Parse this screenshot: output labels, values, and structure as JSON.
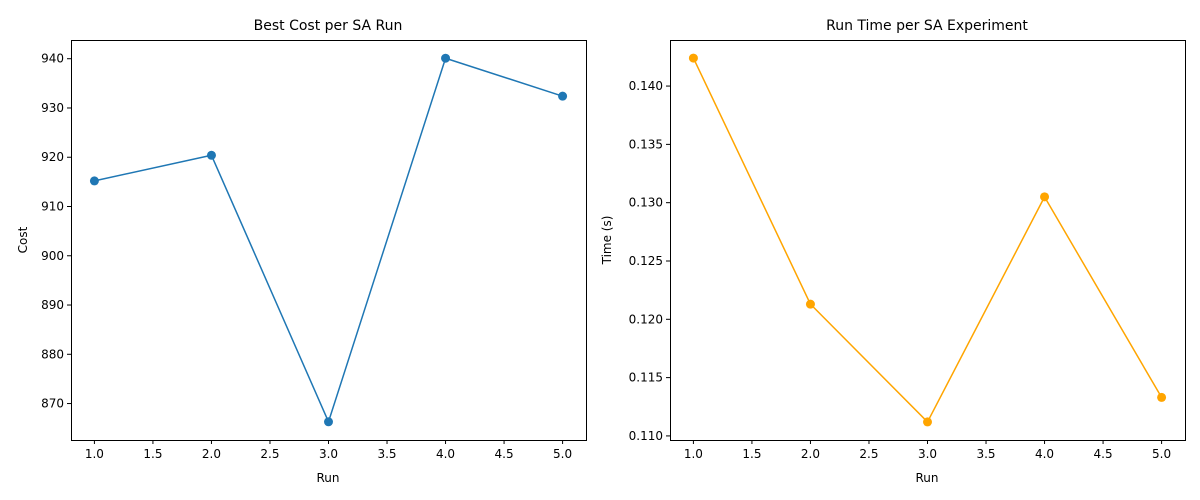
{
  "chart_data": [
    {
      "type": "line",
      "title": "Best Cost per SA Run",
      "xlabel": "Run",
      "ylabel": "Cost",
      "x": [
        1,
        2,
        3,
        4,
        5
      ],
      "series": [
        {
          "values": [
            915.2,
            920.4,
            866.3,
            940.1,
            932.4
          ],
          "color": "#1f77b4",
          "marker": "circle"
        }
      ],
      "xlim": [
        0.8,
        5.2
      ],
      "ylim": [
        862.6,
        943.8
      ],
      "xticks": [
        1.0,
        1.5,
        2.0,
        2.5,
        3.0,
        3.5,
        4.0,
        4.5,
        5.0
      ],
      "xtick_labels": [
        "1.0",
        "1.5",
        "2.0",
        "2.5",
        "3.0",
        "3.5",
        "4.0",
        "4.5",
        "5.0"
      ],
      "yticks": [
        870,
        880,
        890,
        900,
        910,
        920,
        930,
        940
      ],
      "ytick_labels": [
        "870",
        "880",
        "890",
        "900",
        "910",
        "920",
        "930",
        "940"
      ],
      "grid": false
    },
    {
      "type": "line",
      "title": "Run Time per SA Experiment",
      "xlabel": "Run",
      "ylabel": "Time (s)",
      "x": [
        1,
        2,
        3,
        4,
        5
      ],
      "series": [
        {
          "values": [
            0.1424,
            0.1213,
            0.1112,
            0.1305,
            0.1133
          ],
          "color": "#ffa500",
          "marker": "circle"
        }
      ],
      "xlim": [
        0.8,
        5.2
      ],
      "ylim": [
        0.10965,
        0.14395
      ],
      "xticks": [
        1.0,
        1.5,
        2.0,
        2.5,
        3.0,
        3.5,
        4.0,
        4.5,
        5.0
      ],
      "xtick_labels": [
        "1.0",
        "1.5",
        "2.0",
        "2.5",
        "3.0",
        "3.5",
        "4.0",
        "4.5",
        "5.0"
      ],
      "yticks": [
        0.11,
        0.115,
        0.12,
        0.125,
        0.13,
        0.135,
        0.14
      ],
      "ytick_labels": [
        "0.110",
        "0.115",
        "0.120",
        "0.125",
        "0.130",
        "0.135",
        "0.140"
      ],
      "grid": false
    }
  ]
}
